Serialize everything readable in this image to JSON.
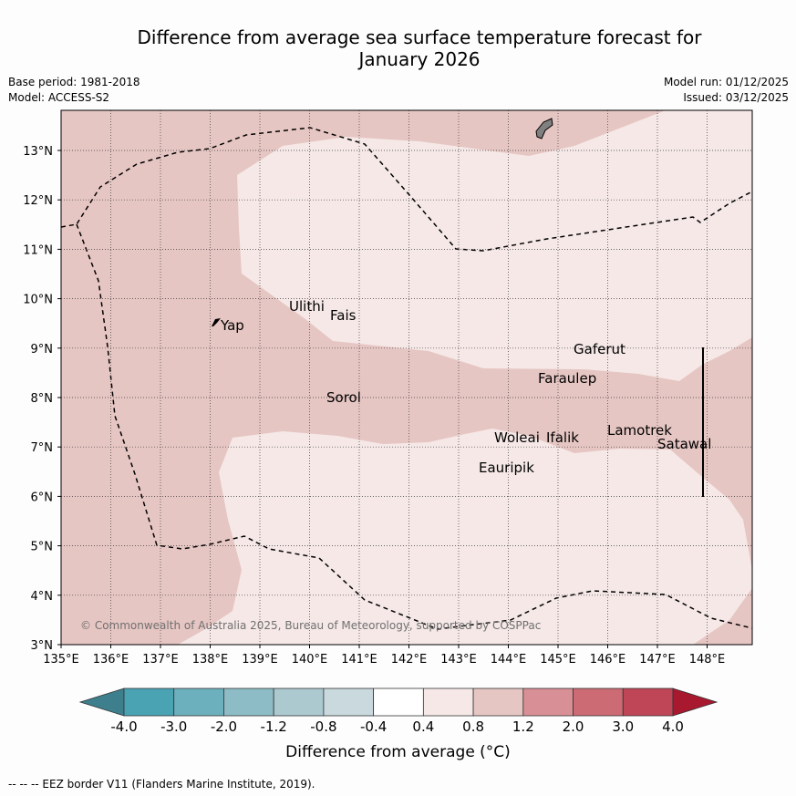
{
  "header": {
    "title_line1": "Difference from average sea surface temperature forecast for",
    "title_line2": "January 2026",
    "base_period": "Base period: 1981-2018",
    "model": "Model: ACCESS-S2",
    "model_run": "Model run: 01/12/2025",
    "issued": "Issued: 03/12/2025"
  },
  "map": {
    "lat_labels": [
      "13°N",
      "12°N",
      "11°N",
      "10°N",
      "9°N",
      "8°N",
      "7°N",
      "6°N",
      "5°N",
      "4°N",
      "3°N"
    ],
    "lon_labels": [
      "135°E",
      "136°E",
      "137°E",
      "138°E",
      "139°E",
      "140°E",
      "141°E",
      "142°E",
      "143°E",
      "144°E",
      "145°E",
      "146°E",
      "147°E",
      "148°E"
    ],
    "places": [
      "Yap",
      "Ulithi",
      "Fais",
      "Sorol",
      "Gaferut",
      "Faraulep",
      "Woleai",
      "Ifalik",
      "Lamotrek",
      "Satawal",
      "Eauripik"
    ],
    "copyright": "© Commonwealth of Australia 2025, Bureau of Meteorology, supported by COSPPac",
    "colors": {
      "anomaly_0_4_0_8": "#f5e8e7",
      "anomaly_0_8_1_2": "#e6c6c3"
    }
  },
  "colorbar": {
    "ticks": [
      "-4.0",
      "-3.0",
      "-2.0",
      "-1.2",
      "-0.8",
      "-0.4",
      "0.4",
      "0.8",
      "1.2",
      "2.0",
      "3.0",
      "4.0"
    ],
    "colors": [
      "#3d7f8c",
      "#4aa3b3",
      "#6db0bd",
      "#8ebcc6",
      "#adc9d0",
      "#c9d9dd",
      "#ffffff",
      "#f5e8e7",
      "#e6c6c3",
      "#d98f96",
      "#cc6b74",
      "#bf4657",
      "#a8182f"
    ],
    "label": "Difference from average (°C)"
  },
  "footer": {
    "eez_note": "--  --  -- EEZ border V11 (Flanders Marine Institute, 2019)."
  }
}
